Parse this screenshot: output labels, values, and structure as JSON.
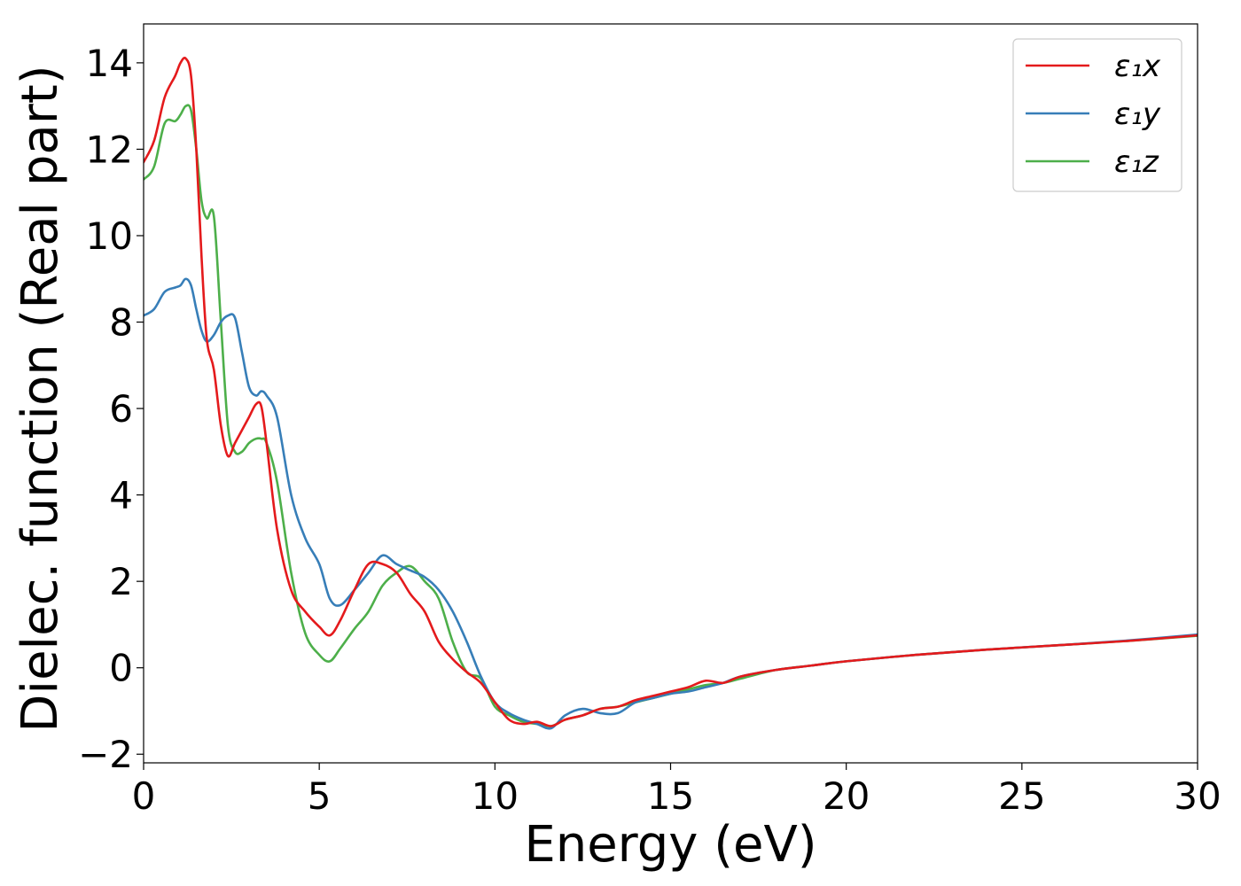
{
  "chart_data": {
    "type": "line",
    "xlabel": "Energy (eV)",
    "ylabel": "Dielec. function (Real part)",
    "xlim": [
      0,
      30
    ],
    "ylim": [
      -2.2,
      14.9
    ],
    "xticks": [
      0,
      5,
      10,
      15,
      20,
      25,
      30
    ],
    "yticks": [
      -2,
      0,
      2,
      4,
      6,
      8,
      10,
      12,
      14
    ],
    "ytick_labels": [
      "−2",
      "0",
      "2",
      "4",
      "6",
      "8",
      "10",
      "12",
      "14"
    ],
    "xtick_labels": [
      "0",
      "5",
      "10",
      "15",
      "20",
      "25",
      "30"
    ],
    "grid": false,
    "legend_position": "top-right",
    "series": [
      {
        "name": "ε₁x",
        "color": "#e41a1c",
        "x": [
          0,
          0.3,
          0.6,
          0.9,
          1.05,
          1.2,
          1.35,
          1.5,
          1.65,
          1.8,
          2.0,
          2.2,
          2.4,
          2.6,
          2.8,
          3.0,
          3.2,
          3.35,
          3.5,
          3.8,
          4.2,
          4.6,
          5.0,
          5.3,
          5.6,
          6.0,
          6.4,
          6.8,
          7.2,
          7.6,
          8.0,
          8.4,
          8.8,
          9.2,
          9.6,
          10.0,
          10.4,
          10.8,
          11.2,
          11.6,
          12.0,
          12.5,
          13.0,
          13.5,
          14.0,
          14.5,
          15.0,
          15.5,
          16.0,
          16.5,
          17.0,
          18.0,
          19.0,
          20.0,
          22.0,
          24.0,
          26.0,
          28.0,
          30.0
        ],
        "y": [
          11.7,
          12.2,
          13.2,
          13.7,
          14.0,
          14.1,
          13.7,
          12.0,
          9.5,
          7.6,
          6.9,
          5.6,
          4.9,
          5.2,
          5.5,
          5.8,
          6.1,
          6.05,
          5.2,
          3.2,
          1.8,
          1.3,
          0.95,
          0.75,
          1.1,
          1.8,
          2.4,
          2.4,
          2.2,
          1.7,
          1.3,
          0.6,
          0.2,
          -0.1,
          -0.35,
          -0.8,
          -1.2,
          -1.3,
          -1.25,
          -1.35,
          -1.2,
          -1.1,
          -0.95,
          -0.9,
          -0.75,
          -0.65,
          -0.55,
          -0.45,
          -0.3,
          -0.35,
          -0.2,
          -0.05,
          0.05,
          0.15,
          0.3,
          0.42,
          0.52,
          0.62,
          0.75
        ]
      },
      {
        "name": "ε₁y",
        "color": "#377eb8",
        "x": [
          0,
          0.3,
          0.6,
          0.9,
          1.05,
          1.2,
          1.35,
          1.5,
          1.65,
          1.8,
          2.0,
          2.2,
          2.4,
          2.6,
          2.8,
          3.0,
          3.2,
          3.35,
          3.5,
          3.8,
          4.2,
          4.6,
          5.0,
          5.3,
          5.6,
          6.0,
          6.4,
          6.8,
          7.2,
          7.6,
          8.0,
          8.4,
          8.8,
          9.2,
          9.6,
          10.0,
          10.4,
          10.8,
          11.2,
          11.6,
          12.0,
          12.5,
          13.0,
          13.5,
          14.0,
          14.5,
          15.0,
          15.5,
          16.0,
          16.5,
          17.0,
          18.0,
          19.0,
          20.0,
          22.0,
          24.0,
          26.0,
          28.0,
          30.0
        ],
        "y": [
          8.15,
          8.3,
          8.7,
          8.8,
          8.85,
          9.0,
          8.85,
          8.3,
          7.8,
          7.55,
          7.7,
          8.0,
          8.15,
          8.1,
          7.3,
          6.5,
          6.3,
          6.4,
          6.3,
          5.8,
          4.0,
          3.0,
          2.4,
          1.6,
          1.45,
          1.8,
          2.2,
          2.6,
          2.4,
          2.25,
          2.1,
          1.8,
          1.3,
          0.6,
          -0.2,
          -0.8,
          -1.05,
          -1.2,
          -1.3,
          -1.4,
          -1.1,
          -0.95,
          -1.05,
          -1.05,
          -0.8,
          -0.7,
          -0.6,
          -0.55,
          -0.45,
          -0.35,
          -0.2,
          -0.05,
          0.05,
          0.15,
          0.3,
          0.42,
          0.52,
          0.63,
          0.77
        ]
      },
      {
        "name": "ε₁z",
        "color": "#4daf4a",
        "x": [
          0,
          0.3,
          0.6,
          0.9,
          1.05,
          1.2,
          1.35,
          1.5,
          1.65,
          1.8,
          2.0,
          2.2,
          2.4,
          2.6,
          2.8,
          3.0,
          3.2,
          3.35,
          3.5,
          3.8,
          4.2,
          4.6,
          5.0,
          5.3,
          5.6,
          6.0,
          6.4,
          6.8,
          7.2,
          7.6,
          8.0,
          8.4,
          8.8,
          9.2,
          9.6,
          10.0,
          10.4,
          10.8,
          11.2,
          11.6,
          12.0,
          12.5,
          13.0,
          13.5,
          14.0,
          14.5,
          15.0,
          15.5,
          16.0,
          16.5,
          17.0,
          18.0,
          19.0,
          20.0,
          22.0,
          24.0,
          26.0,
          28.0,
          30.0
        ],
        "y": [
          11.3,
          11.6,
          12.6,
          12.65,
          12.8,
          13.0,
          12.9,
          12.0,
          10.8,
          10.4,
          10.45,
          8.0,
          5.6,
          5.0,
          5.0,
          5.2,
          5.3,
          5.3,
          5.2,
          4.3,
          2.2,
          0.8,
          0.3,
          0.15,
          0.45,
          0.9,
          1.3,
          1.9,
          2.2,
          2.35,
          2.0,
          1.6,
          0.6,
          -0.1,
          -0.25,
          -0.9,
          -1.1,
          -1.25,
          -1.3,
          -1.35,
          -1.2,
          -1.1,
          -0.95,
          -0.9,
          -0.8,
          -0.7,
          -0.6,
          -0.5,
          -0.4,
          -0.35,
          -0.25,
          -0.05,
          0.05,
          0.15,
          0.3,
          0.42,
          0.52,
          0.62,
          0.74
        ]
      }
    ]
  }
}
